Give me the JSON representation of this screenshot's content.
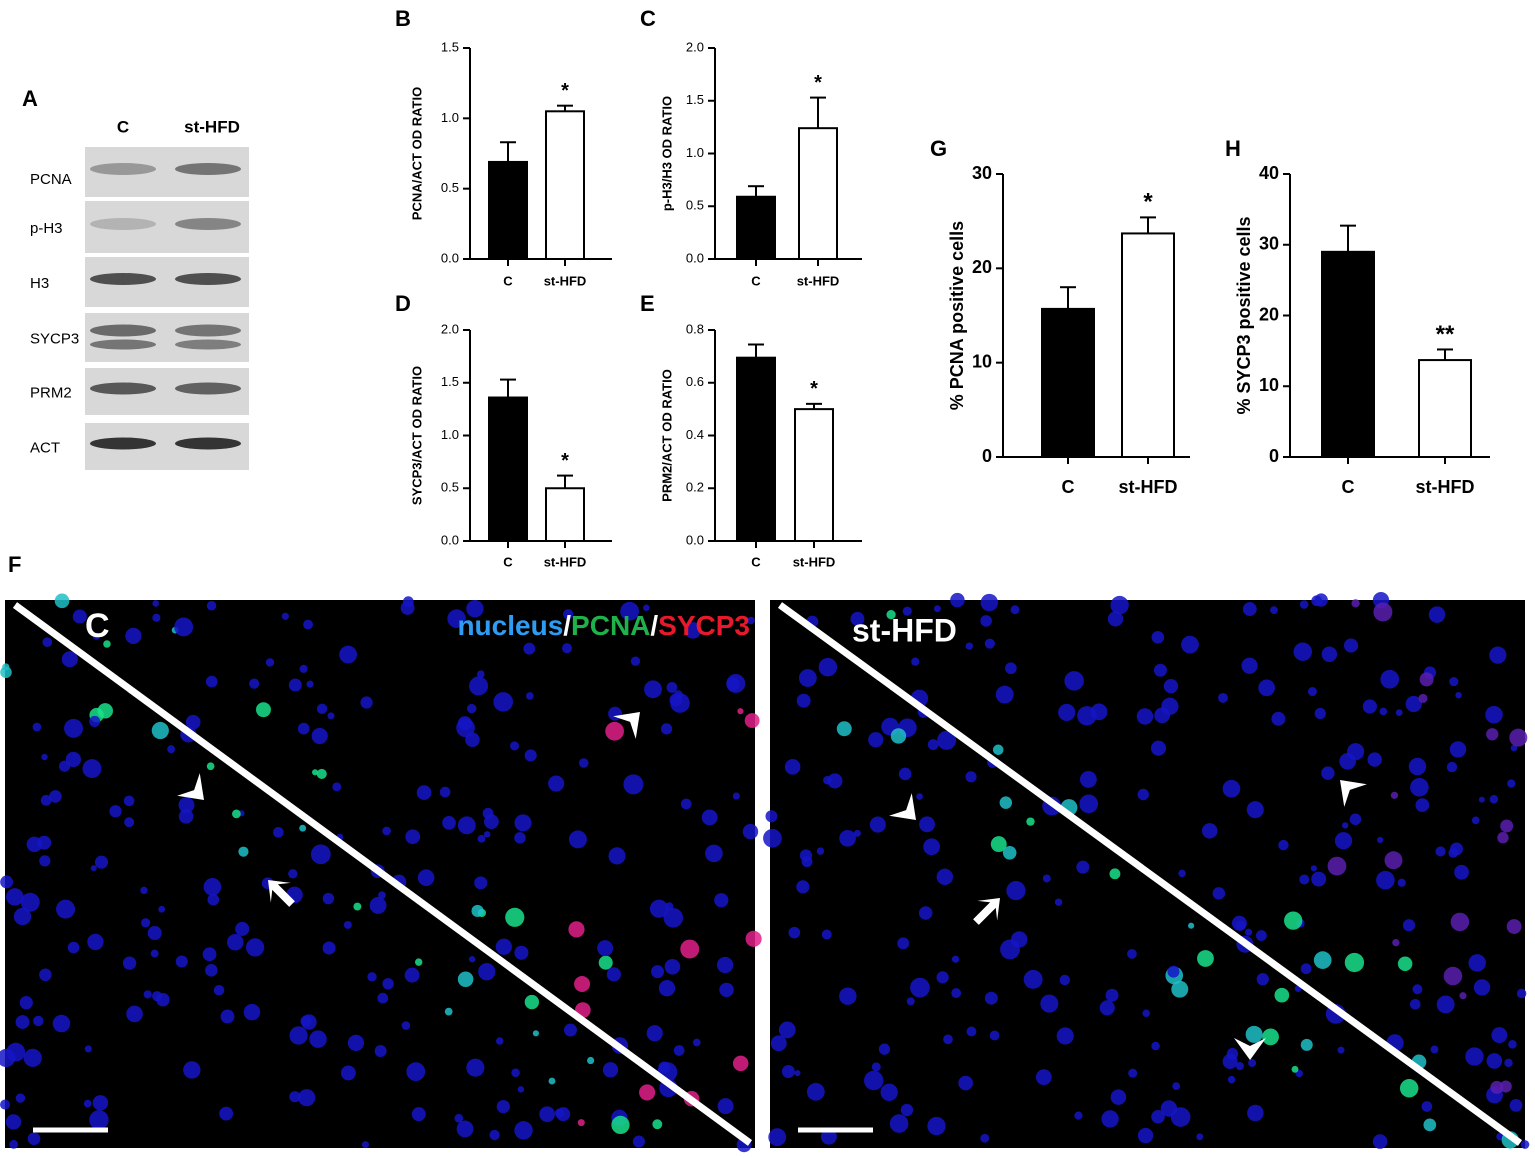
{
  "chart_data": [
    {
      "type": "bar",
      "panel": "B",
      "ylabel": "PCNA/ACT OD RATIO",
      "categories": [
        "C",
        "st-HFD"
      ],
      "values": [
        0.69,
        1.05
      ],
      "errors": [
        0.14,
        0.04
      ],
      "colors": [
        "#000000",
        "#ffffff"
      ],
      "significance": [
        null,
        "*"
      ],
      "ylim": [
        0,
        1.5
      ],
      "yticks": [
        {
          "value": 0,
          "label": "0.0"
        },
        0.5,
        {
          "value": 1,
          "label": "1.0"
        },
        1.5
      ]
    },
    {
      "type": "bar",
      "panel": "C",
      "ylabel": "p-H3/H3 OD RATIO",
      "categories": [
        "C",
        "st-HFD"
      ],
      "values": [
        0.59,
        1.24
      ],
      "errors": [
        0.1,
        0.29
      ],
      "colors": [
        "#000000",
        "#ffffff"
      ],
      "significance": [
        null,
        "*"
      ],
      "ylim": [
        0,
        2
      ],
      "yticks": [
        {
          "value": 0,
          "label": "0.0"
        },
        0.5,
        {
          "value": 1,
          "label": "1.0"
        },
        1.5,
        {
          "value": 2,
          "label": "2.0"
        }
      ]
    },
    {
      "type": "bar",
      "panel": "D",
      "ylabel": "SYCP3/ACT OD RATIO",
      "categories": [
        "C",
        "st-HFD"
      ],
      "values": [
        1.36,
        0.5
      ],
      "errors": [
        0.17,
        0.12
      ],
      "colors": [
        "#000000",
        "#ffffff"
      ],
      "significance": [
        null,
        "*"
      ],
      "ylim": [
        0,
        2
      ],
      "yticks": [
        {
          "value": 0,
          "label": "0.0"
        },
        0.5,
        {
          "value": 1,
          "label": "1.0"
        },
        1.5,
        {
          "value": 2,
          "label": "2.0"
        }
      ]
    },
    {
      "type": "bar",
      "panel": "E",
      "ylabel": "PRM2/ACT OD RATIO",
      "categories": [
        "C",
        "st-HFD"
      ],
      "values": [
        0.695,
        0.5
      ],
      "errors": [
        0.05,
        0.02
      ],
      "colors": [
        "#000000",
        "#ffffff"
      ],
      "significance": [
        null,
        "*"
      ],
      "ylim": [
        0,
        0.8
      ],
      "yticks": [
        {
          "value": 0,
          "label": "0.0"
        },
        0.2,
        0.4,
        0.6,
        0.8
      ]
    },
    {
      "type": "bar",
      "panel": "G",
      "ylabel": "% PCNA positive cells",
      "categories": [
        "C",
        "st-HFD"
      ],
      "values": [
        15.7,
        23.7
      ],
      "errors": [
        2.3,
        1.7
      ],
      "colors": [
        "#000000",
        "#ffffff"
      ],
      "significance": [
        null,
        "*"
      ],
      "ylim": [
        0,
        30
      ],
      "yticks": [
        0,
        10,
        20,
        30
      ]
    },
    {
      "type": "bar",
      "panel": "H",
      "ylabel": "% SYCP3 positive cells",
      "categories": [
        "C",
        "st-HFD"
      ],
      "values": [
        29,
        13.7
      ],
      "errors": [
        3.7,
        1.5
      ],
      "colors": [
        "#000000",
        "#ffffff"
      ],
      "significance": [
        null,
        "**"
      ],
      "ylim": [
        0,
        40
      ],
      "yticks": [
        0,
        10,
        20,
        30,
        40
      ]
    }
  ],
  "blot": {
    "panel": "A",
    "columns": [
      "C",
      "st-HFD"
    ],
    "rows": [
      "PCNA",
      "p-H3",
      "H3",
      "SYCP3",
      "PRM2",
      "ACT"
    ]
  },
  "micrographs": {
    "panel": "F",
    "left_label": "C",
    "right_label": "st-HFD",
    "legend": [
      {
        "text": "nucleus",
        "color": "#2f9cf4"
      },
      {
        "text": "/",
        "color": "#ffffff"
      },
      {
        "text": "PCNA",
        "color": "#1fb24a"
      },
      {
        "text": "/",
        "color": "#ffffff"
      },
      {
        "text": "SYCP3",
        "color": "#e8192c"
      }
    ]
  }
}
